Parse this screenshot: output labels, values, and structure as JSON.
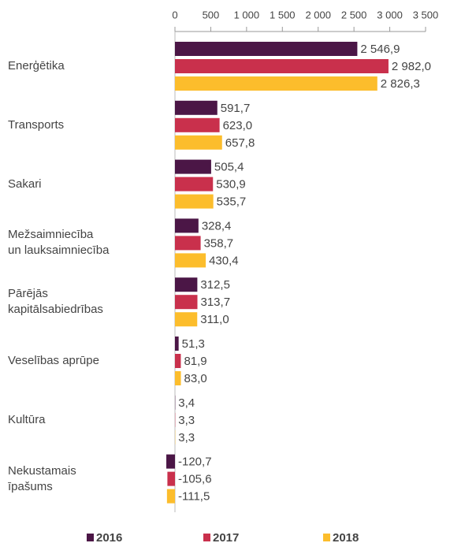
{
  "chart_data": {
    "type": "bar",
    "orientation": "horizontal",
    "categories": [
      "Enerģētika",
      "Transports",
      "Sakari",
      "Mežsaimniecība\nun lauksaimniecība",
      "Pārējās\nkapitālsabiedrības",
      "Veselības aprūpe",
      "Kultūra",
      "Nekustamais\nīpašums"
    ],
    "series": [
      {
        "name": "2016",
        "color": "#4b1646",
        "values": [
          2546.9,
          591.7,
          505.4,
          328.4,
          312.5,
          51.3,
          3.4,
          -120.7
        ],
        "value_labels": [
          "2 546,9",
          "591,7",
          "505,4",
          "328,4",
          "312,5",
          "51,3",
          "3,4",
          "-120,7"
        ]
      },
      {
        "name": "2017",
        "color": "#c9304c",
        "values": [
          2982.0,
          623.0,
          530.9,
          358.7,
          313.7,
          81.9,
          3.3,
          -105.6
        ],
        "value_labels": [
          "2 982,0",
          "623,0",
          "530,9",
          "358,7",
          "313,7",
          "81,9",
          "3,3",
          "-105,6"
        ]
      },
      {
        "name": "2018",
        "color": "#fcbd2c",
        "values": [
          2826.3,
          657.8,
          535.7,
          430.4,
          311.0,
          83.0,
          3.3,
          -111.5
        ],
        "value_labels": [
          "2 826,3",
          "657,8",
          "535,7",
          "430,4",
          "311,0",
          "83,0",
          "3,3",
          "-111,5"
        ]
      }
    ],
    "xlim": [
      0,
      3500
    ],
    "xticks": [
      0,
      500,
      {
        "value": 1000,
        "label": "1 000"
      },
      {
        "value": 1500,
        "label": "1 500"
      },
      {
        "value": 2000,
        "label": "2 000"
      },
      {
        "value": 2500,
        "label": "2 500"
      },
      {
        "value": 3000,
        "label": "3 000"
      },
      {
        "value": 3500,
        "label": "3 500"
      }
    ],
    "legend": "bottom"
  }
}
